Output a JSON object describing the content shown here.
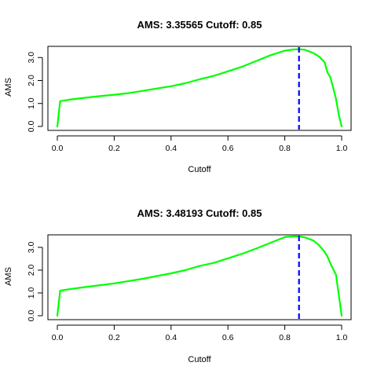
{
  "chart_data": [
    {
      "type": "line",
      "title": "AMS: 3.35565 Cutoff: 0.85",
      "xlabel": "Cutoff",
      "ylabel": "AMS",
      "xlim": [
        0,
        1
      ],
      "ylim": [
        0,
        3.35
      ],
      "xticks": [
        "0.0",
        "0.2",
        "0.4",
        "0.6",
        "0.8",
        "1.0"
      ],
      "yticks": [
        "0.0",
        "1.0",
        "2.0",
        "3.0"
      ],
      "series": [
        {
          "color": "#00ff00",
          "x": [
            0.0,
            0.01,
            0.02,
            0.05,
            0.1,
            0.15,
            0.2,
            0.25,
            0.3,
            0.35,
            0.4,
            0.45,
            0.5,
            0.55,
            0.6,
            0.65,
            0.7,
            0.75,
            0.8,
            0.83,
            0.85,
            0.87,
            0.9,
            0.92,
            0.94,
            0.95,
            0.96,
            0.97,
            0.98,
            0.99,
            1.0
          ],
          "y": [
            0.0,
            1.1,
            1.12,
            1.18,
            1.25,
            1.32,
            1.38,
            1.45,
            1.55,
            1.65,
            1.75,
            1.88,
            2.05,
            2.2,
            2.4,
            2.6,
            2.85,
            3.1,
            3.3,
            3.35,
            3.36,
            3.34,
            3.2,
            3.05,
            2.8,
            2.35,
            2.15,
            1.7,
            1.2,
            0.5,
            0.0
          ]
        }
      ],
      "vline": {
        "x": 0.85,
        "color": "#0000ff",
        "style": "dashed"
      }
    },
    {
      "type": "line",
      "title": "AMS: 3.48193 Cutoff: 0.85",
      "xlabel": "Cutoff",
      "ylabel": "AMS",
      "xlim": [
        0,
        1
      ],
      "ylim": [
        0,
        3.48
      ],
      "xticks": [
        "0.0",
        "0.2",
        "0.4",
        "0.6",
        "0.8",
        "1.0"
      ],
      "yticks": [
        "0.0",
        "1.0",
        "2.0",
        "3.0"
      ],
      "series": [
        {
          "color": "#00ff00",
          "x": [
            0.0,
            0.01,
            0.02,
            0.05,
            0.1,
            0.15,
            0.2,
            0.25,
            0.3,
            0.35,
            0.4,
            0.45,
            0.5,
            0.55,
            0.6,
            0.65,
            0.7,
            0.75,
            0.8,
            0.83,
            0.85,
            0.87,
            0.9,
            0.92,
            0.94,
            0.95,
            0.96,
            0.97,
            0.98,
            0.99,
            1.0
          ],
          "y": [
            0.0,
            1.1,
            1.12,
            1.18,
            1.26,
            1.34,
            1.42,
            1.52,
            1.62,
            1.74,
            1.86,
            2.0,
            2.18,
            2.32,
            2.52,
            2.72,
            2.95,
            3.2,
            3.45,
            3.48,
            3.48,
            3.44,
            3.3,
            3.1,
            2.8,
            2.6,
            2.3,
            2.05,
            1.8,
            0.9,
            0.0
          ]
        }
      ],
      "vline": {
        "x": 0.85,
        "color": "#0000ff",
        "style": "dashed"
      }
    }
  ]
}
